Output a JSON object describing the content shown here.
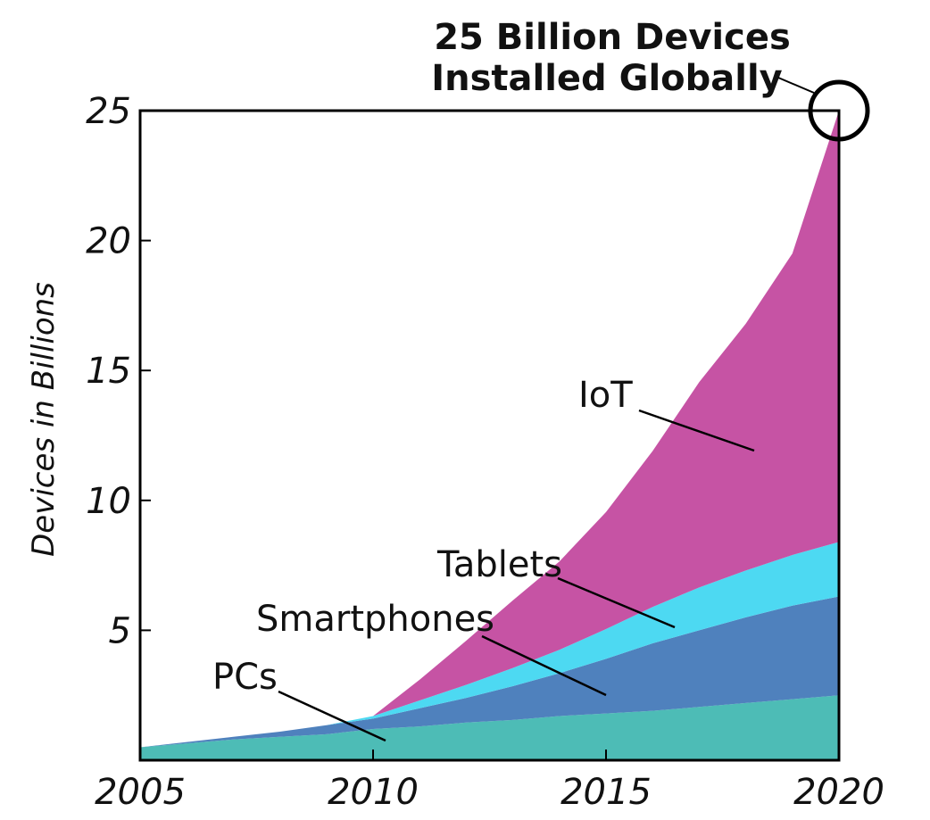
{
  "chart_data": {
    "type": "area",
    "stacked": true,
    "title_lines": [
      "25 Billion Devices",
      "Installed Globally"
    ],
    "xlabel": "",
    "ylabel": "Devices in Billions",
    "xlim": [
      2005,
      2020
    ],
    "ylim": [
      0,
      25
    ],
    "x_ticks": [
      "2005",
      "2010",
      "2015",
      "2020"
    ],
    "y_ticks": [
      "5",
      "10",
      "15",
      "20",
      "25"
    ],
    "grid": false,
    "legend": "none",
    "x": [
      2005,
      2006,
      2007,
      2008,
      2009,
      2010,
      2011,
      2012,
      2013,
      2014,
      2015,
      2016,
      2017,
      2018,
      2019,
      2020
    ],
    "series": [
      {
        "name": "PCs",
        "color": "#4dbcb6",
        "values": [
          0.5,
          0.65,
          0.8,
          0.9,
          1.0,
          1.2,
          1.3,
          1.45,
          1.55,
          1.7,
          1.8,
          1.9,
          2.05,
          2.2,
          2.35,
          2.5
        ]
      },
      {
        "name": "Smartphones",
        "color": "#4f81bd",
        "values": [
          0.0,
          0.05,
          0.1,
          0.2,
          0.35,
          0.4,
          0.7,
          0.95,
          1.3,
          1.65,
          2.1,
          2.6,
          2.95,
          3.3,
          3.6,
          3.8
        ]
      },
      {
        "name": "Tablets",
        "color": "#4dd9f2",
        "values": [
          0.0,
          0.0,
          0.0,
          0.0,
          0.0,
          0.1,
          0.3,
          0.5,
          0.7,
          0.9,
          1.15,
          1.4,
          1.65,
          1.8,
          1.95,
          2.1
        ]
      },
      {
        "name": "IoT",
        "color": "#c653a4",
        "values": [
          0.0,
          0.0,
          0.0,
          0.0,
          0.0,
          0.0,
          0.8,
          1.7,
          2.6,
          3.4,
          4.5,
          6.0,
          7.9,
          9.5,
          11.6,
          16.6
        ]
      }
    ],
    "annotations": [
      {
        "text": "IoT",
        "series": "IoT"
      },
      {
        "text": "Tablets",
        "series": "Tablets"
      },
      {
        "text": "Smartphones",
        "series": "Smartphones"
      },
      {
        "text": "PCs",
        "series": "PCs"
      }
    ],
    "highlight": {
      "x": 2020,
      "y": 25,
      "shape": "circle"
    }
  }
}
